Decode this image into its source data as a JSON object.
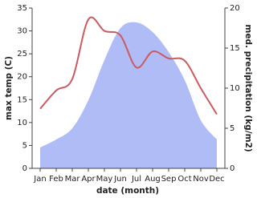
{
  "chart_data": {
    "type": "line",
    "x_label": "date (month)",
    "y_label": "max temp (C)",
    "y2_label": "med. precipitation (kg/m2)",
    "categories": [
      "Jan",
      "Feb",
      "Mar",
      "Apr",
      "May",
      "Jun",
      "Jul",
      "Aug",
      "Sep",
      "Oct",
      "Nov",
      "Dec"
    ],
    "series": [
      {
        "name": "med. precipitation",
        "type": "area",
        "axis": "y2",
        "color": "#b0bcf5",
        "values": [
          2.6,
          3.6,
          5,
          8.5,
          13.5,
          17.5,
          18.2,
          17,
          14.5,
          11,
          6,
          3.6
        ]
      },
      {
        "name": "max temp",
        "type": "line",
        "color": "#cc5a5f",
        "values": [
          13,
          17,
          19.5,
          32.5,
          30,
          29,
          22,
          25.5,
          24,
          23.5,
          17.5,
          11.8
        ]
      }
    ],
    "ylim": [
      0,
      35
    ],
    "yticks": [
      0,
      5,
      10,
      15,
      20,
      25,
      30,
      35
    ],
    "y2lim": [
      0,
      20
    ],
    "y2ticks": [
      0,
      5,
      10,
      15,
      20
    ]
  }
}
